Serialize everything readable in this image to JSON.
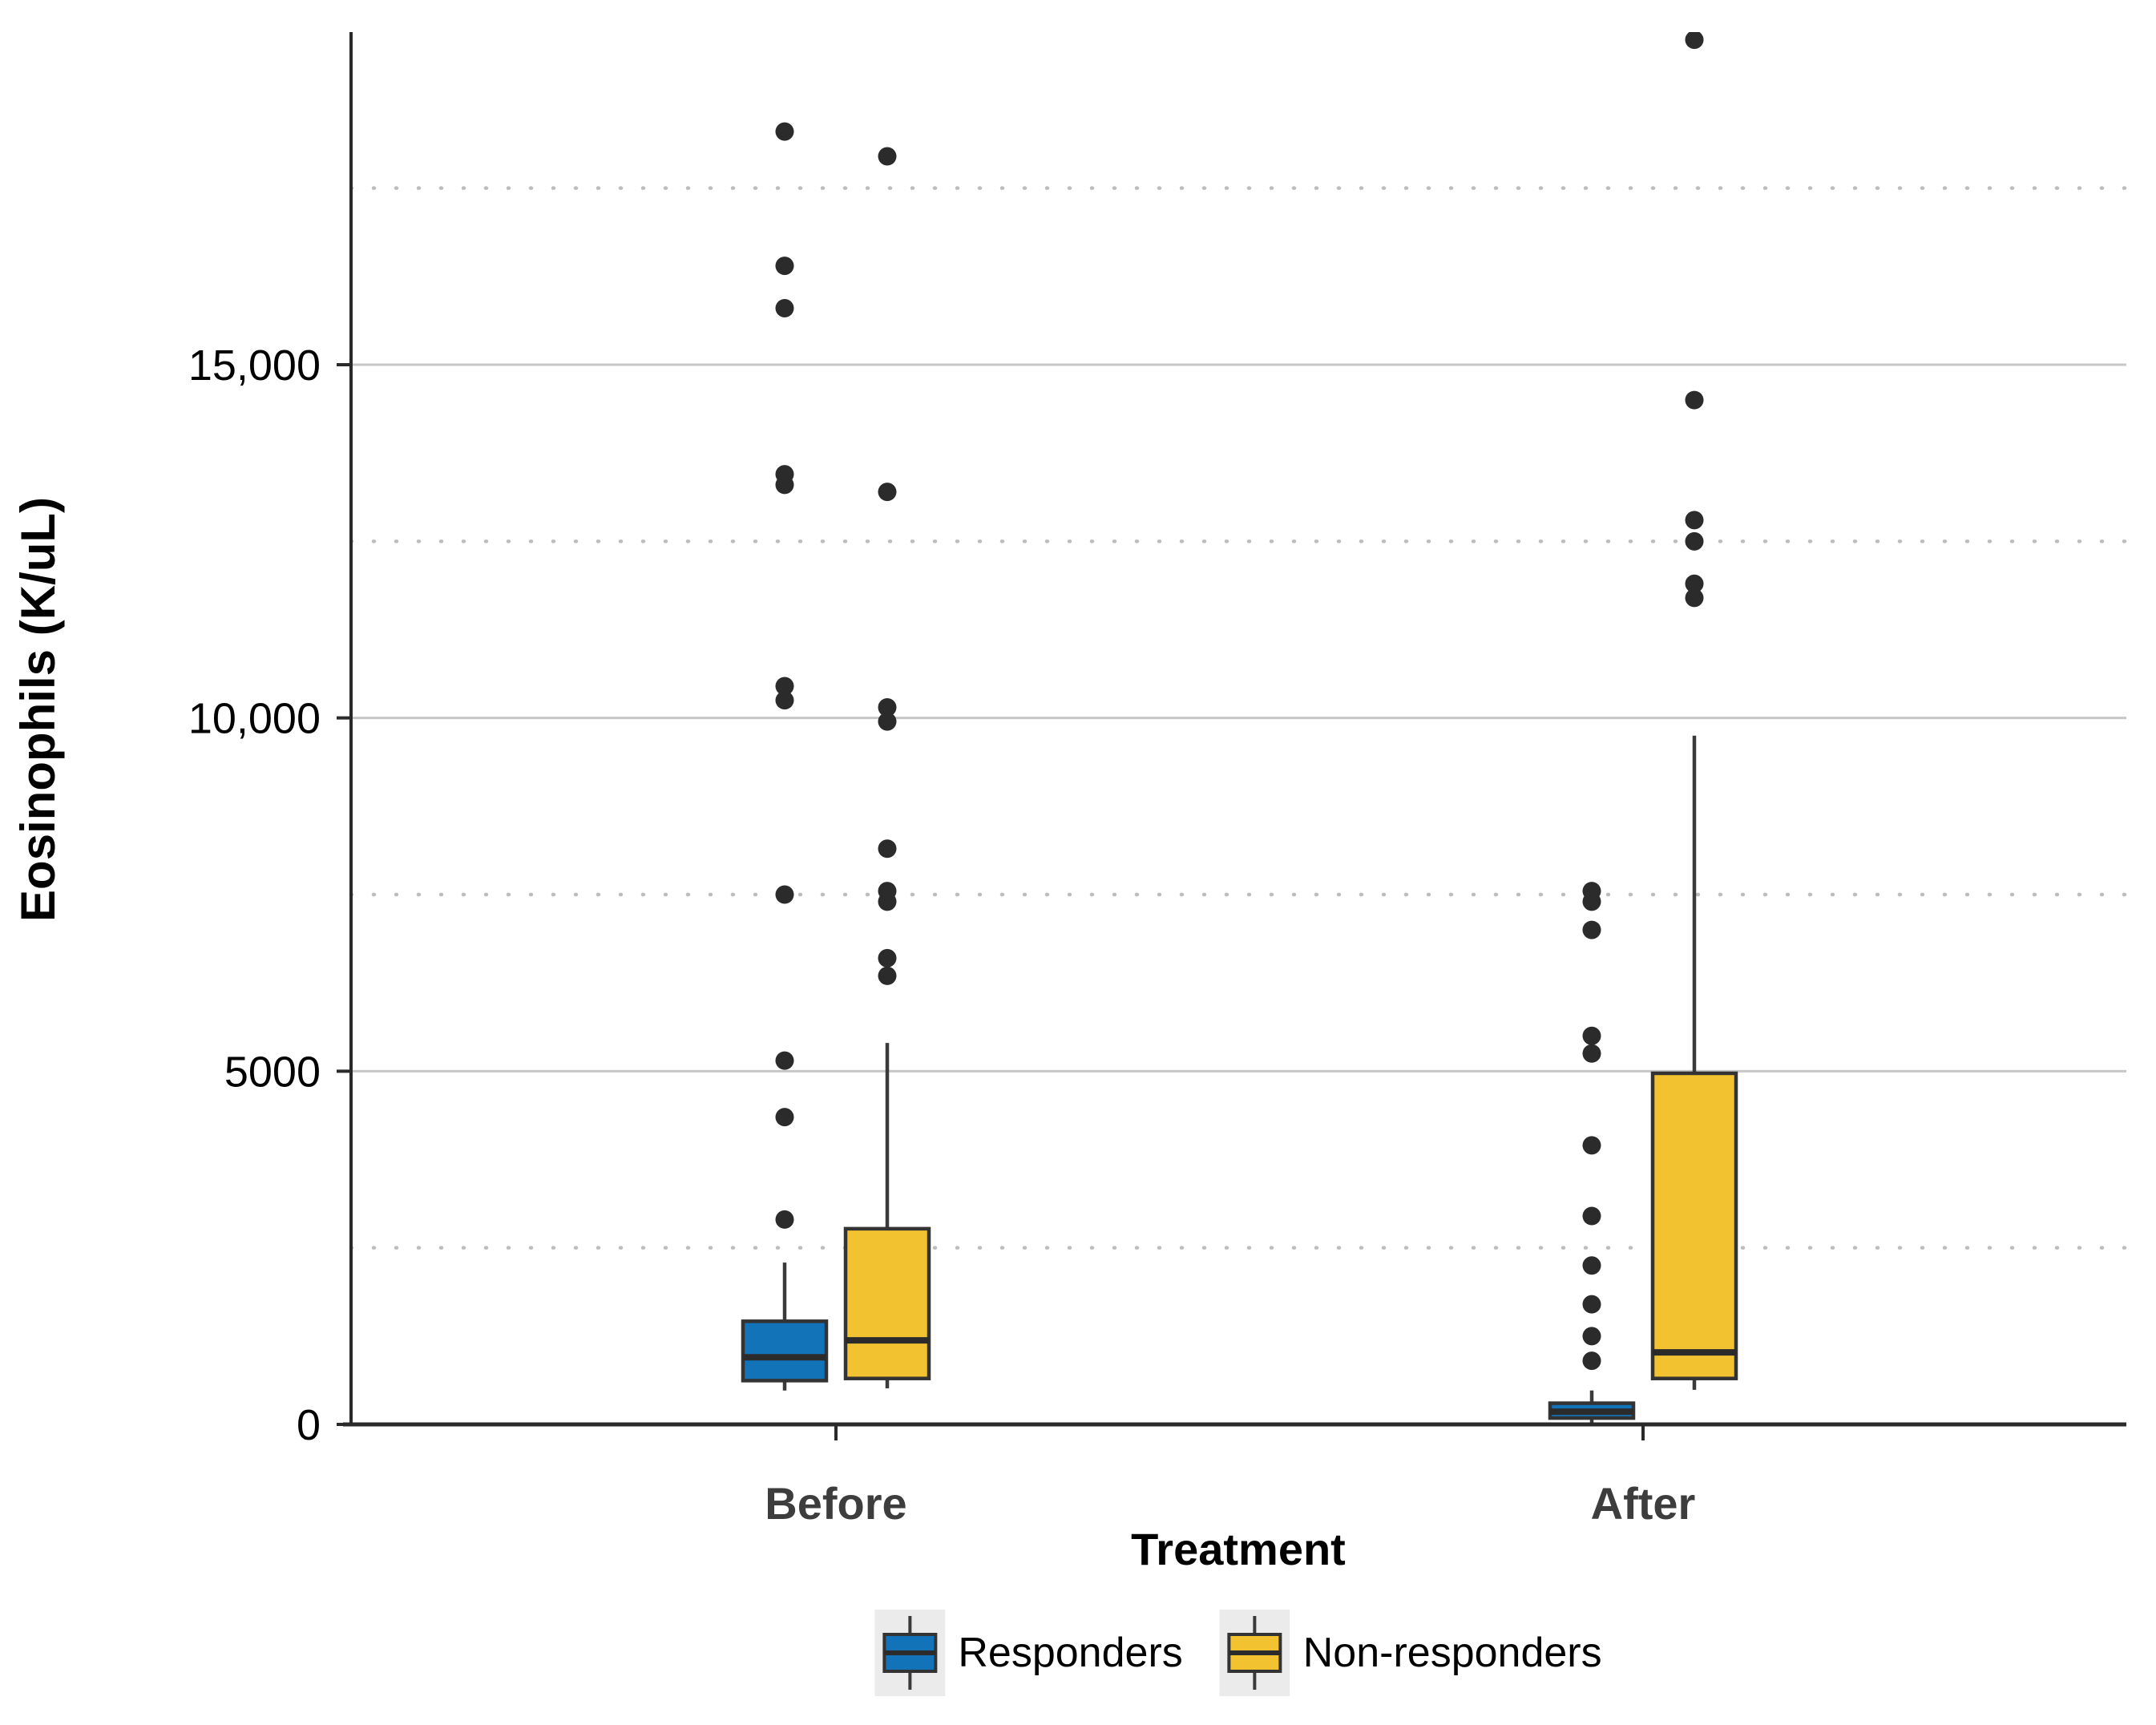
{
  "chart_data": {
    "type": "boxplot",
    "title": "",
    "xlabel": "Treatment",
    "ylabel": "Eosinophils (K/uL)",
    "categories": [
      "Before",
      "After"
    ],
    "y_axis": {
      "min": 0,
      "max_visible": 19700,
      "ticks": [
        {
          "value": 0,
          "label": "0"
        },
        {
          "value": 5000,
          "label": "5000"
        },
        {
          "value": 10000,
          "label": "10,000"
        },
        {
          "value": 15000,
          "label": "15,000"
        }
      ],
      "solid_gridlines": [
        5000,
        10000,
        15000
      ],
      "dotted_gridlines": [
        2500,
        7500,
        12500,
        17500
      ],
      "grid": true
    },
    "legend_position": "bottom-center",
    "series": [
      {
        "name": "Responders",
        "color": "#1373b9",
        "boxes": [
          {
            "category": "Before",
            "whisker_low": 480,
            "q1": 620,
            "median": 950,
            "q3": 1460,
            "whisker_high": 2290,
            "outliers": [
              2900,
              4350,
              5150,
              7500,
              10250,
              10450,
              13300,
              13450,
              15800,
              16400,
              18300
            ]
          },
          {
            "category": "After",
            "whisker_low": 10,
            "q1": 90,
            "median": 180,
            "q3": 300,
            "whisker_high": 480,
            "outliers": [
              900,
              1250,
              1700,
              2250,
              2950,
              3950,
              5250,
              5500,
              7000,
              7400,
              7550
            ]
          }
        ]
      },
      {
        "name": "Non-responders",
        "color": "#f2c230",
        "boxes": [
          {
            "category": "Before",
            "whisker_low": 510,
            "q1": 650,
            "median": 1190,
            "q3": 2770,
            "whisker_high": 5400,
            "outliers": [
              6350,
              6600,
              7400,
              7550,
              8150,
              9950,
              10150,
              13200,
              17950
            ]
          },
          {
            "category": "After",
            "whisker_low": 490,
            "q1": 650,
            "median": 1020,
            "q3": 4970,
            "whisker_high": 9750,
            "outliers": [
              11700,
              11900,
              12500,
              12800,
              14500,
              19600
            ]
          }
        ]
      }
    ],
    "style": {
      "box_border_color": "#333333",
      "median_color": "#2b2b2b",
      "whisker_color": "#3a3a3a",
      "outlier_color": "#2b2b2b",
      "solid_grid_color": "#c7c7c7",
      "dotted_grid_color": "#bdbdbd",
      "axis_color": "#2a2a2a",
      "legend_key_bg": "#ebebeb"
    }
  }
}
